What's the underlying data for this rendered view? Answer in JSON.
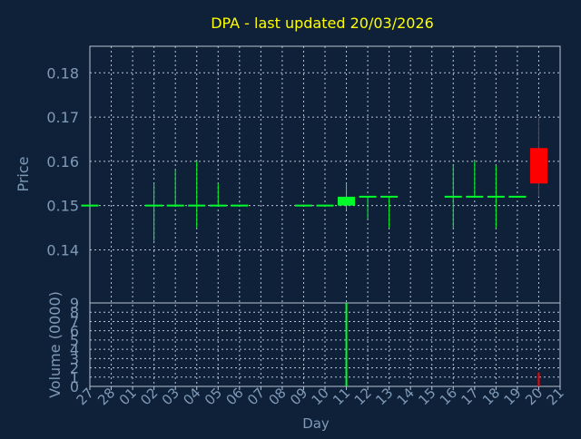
{
  "colors": {
    "background": "#0f2138",
    "frame": "#b8c4d4",
    "grid": "#b8c4d4",
    "axis_text": "#7e9ab8",
    "title": "#ffff00",
    "up": "#00ff2a",
    "down": "#ff0000"
  },
  "chart_data": [
    {
      "type": "candlestick",
      "title": "DPA - last updated 20/03/2026",
      "ylabel": "Price",
      "ylim": [
        0.128,
        0.186
      ],
      "y_ticks": [
        0.14,
        0.15,
        0.16,
        0.17,
        0.18
      ],
      "y_tick_labels": [
        "0.14",
        "0.15",
        "0.16",
        "0.17",
        "0.18"
      ],
      "grid": true,
      "x_labels": [
        "27",
        "28",
        "01",
        "02",
        "03",
        "04",
        "05",
        "06",
        "07",
        "08",
        "09",
        "10",
        "11",
        "12",
        "13",
        "14",
        "15",
        "16",
        "17",
        "18",
        "19",
        "20",
        "21"
      ],
      "candles": [
        {
          "x": "27",
          "open": 0.15,
          "high": 0.15,
          "low": 0.15,
          "close": 0.15
        },
        {
          "x": "02",
          "open": 0.15,
          "high": 0.155,
          "low": 0.142,
          "close": 0.15
        },
        {
          "x": "03",
          "open": 0.15,
          "high": 0.158,
          "low": 0.15,
          "close": 0.15
        },
        {
          "x": "04",
          "open": 0.15,
          "high": 0.16,
          "low": 0.145,
          "close": 0.15
        },
        {
          "x": "05",
          "open": 0.15,
          "high": 0.155,
          "low": 0.15,
          "close": 0.15
        },
        {
          "x": "06",
          "open": 0.15,
          "high": 0.15,
          "low": 0.15,
          "close": 0.15
        },
        {
          "x": "09",
          "open": 0.15,
          "high": 0.15,
          "low": 0.15,
          "close": 0.15
        },
        {
          "x": "10",
          "open": 0.15,
          "high": 0.15,
          "low": 0.15,
          "close": 0.15
        },
        {
          "x": "11",
          "open": 0.15,
          "high": 0.155,
          "low": 0.149,
          "close": 0.152
        },
        {
          "x": "12",
          "open": 0.152,
          "high": 0.152,
          "low": 0.147,
          "close": 0.152
        },
        {
          "x": "13",
          "open": 0.152,
          "high": 0.152,
          "low": 0.145,
          "close": 0.152
        },
        {
          "x": "16",
          "open": 0.152,
          "high": 0.159,
          "low": 0.145,
          "close": 0.152
        },
        {
          "x": "17",
          "open": 0.152,
          "high": 0.16,
          "low": 0.152,
          "close": 0.152
        },
        {
          "x": "18",
          "open": 0.152,
          "high": 0.159,
          "low": 0.145,
          "close": 0.152
        },
        {
          "x": "19",
          "open": 0.152,
          "high": 0.152,
          "low": 0.152,
          "close": 0.152
        },
        {
          "x": "20",
          "open": 0.163,
          "high": 0.17,
          "low": 0.152,
          "close": 0.155
        }
      ]
    },
    {
      "type": "bar",
      "ylabel": "Volume (0000)",
      "xlabel": "Day",
      "ylim": [
        0,
        9
      ],
      "y_ticks": [
        0,
        1,
        2,
        3,
        4,
        5,
        6,
        7,
        8,
        9
      ],
      "y_tick_labels": [
        "0",
        "1",
        "2",
        "3",
        "4",
        "5",
        "6",
        "7",
        "8",
        "9"
      ],
      "grid": true,
      "x_labels": [
        "27",
        "28",
        "01",
        "02",
        "03",
        "04",
        "05",
        "06",
        "07",
        "08",
        "09",
        "10",
        "11",
        "12",
        "13",
        "14",
        "15",
        "16",
        "17",
        "18",
        "19",
        "20",
        "21"
      ],
      "bars": [
        {
          "x": "11",
          "value": 9.0,
          "direction": "up"
        },
        {
          "x": "20",
          "value": 1.5,
          "direction": "down"
        }
      ]
    }
  ]
}
